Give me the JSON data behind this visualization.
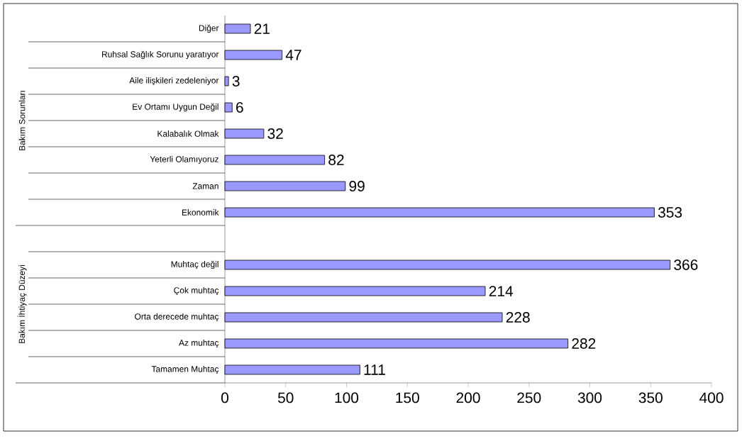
{
  "chart_data": {
    "type": "bar",
    "orientation": "horizontal",
    "categories": [
      "Diğer",
      "Ruhsal Sağlık Sorunu yaratıyor",
      "Aile ilişkileri zedeleniyor",
      "Ev Ortamı Uygun Değil",
      "Kalabalık Olmak",
      "Yeterli Olamıyoruz",
      "Zaman",
      "Ekonomik",
      null,
      "Muhtaç değil",
      "Çok muhtaç",
      "Orta derecede muhtaç",
      "Az muhtaç",
      "Tamamen Muhtaç"
    ],
    "values": [
      21,
      47,
      3,
      6,
      32,
      82,
      99,
      353,
      null,
      366,
      214,
      228,
      282,
      111
    ],
    "color": "#9999ff",
    "data_labels": true,
    "xlim": [
      0,
      400
    ],
    "xticks": [
      0,
      50,
      100,
      150,
      200,
      250,
      300,
      350,
      400
    ],
    "annotations": [
      "Bakım Sorunları",
      "Bakım İhtiyaç Düzeyi"
    ]
  }
}
